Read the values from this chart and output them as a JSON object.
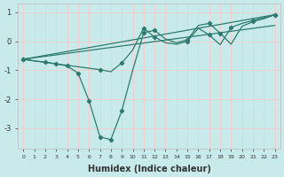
{
  "xlabel": "Humidex (Indice chaleur)",
  "background_color": "#c8eaea",
  "grid_color": "#f0d0d0",
  "line_color": "#2e7b6e",
  "xlim": [
    -0.5,
    23.5
  ],
  "ylim": [
    -3.7,
    1.3
  ],
  "yticks": [
    1,
    0,
    -1,
    -2,
    -3
  ],
  "line1": {
    "x": [
      0,
      23
    ],
    "y": [
      -0.62,
      0.92
    ]
  },
  "line2": {
    "x": [
      0,
      23
    ],
    "y": [
      -0.62,
      0.55
    ]
  },
  "line3": {
    "x": [
      0,
      3,
      4,
      5,
      6,
      7,
      8,
      9,
      10,
      11,
      12,
      13,
      14,
      15,
      16,
      17,
      18,
      19,
      20,
      21,
      22,
      23
    ],
    "y": [
      -0.62,
      -0.78,
      -0.85,
      -1.1,
      -2.05,
      -3.3,
      -3.4,
      -2.4,
      -1.0,
      0.3,
      0.38,
      0.08,
      -0.05,
      0.05,
      0.55,
      0.62,
      0.28,
      -0.1,
      0.52,
      0.68,
      0.78,
      0.92
    ],
    "marker_x": [
      0,
      3,
      5,
      6,
      7,
      8,
      9,
      11,
      12,
      15,
      17,
      18,
      21,
      23
    ],
    "marker_y": [
      -0.62,
      -0.78,
      -1.1,
      -2.05,
      -3.3,
      -3.4,
      -2.4,
      0.3,
      0.38,
      0.05,
      0.62,
      0.28,
      0.68,
      0.92
    ]
  },
  "line4": {
    "x": [
      0,
      1,
      2,
      3,
      4,
      5,
      6,
      7,
      8,
      9,
      10,
      11,
      12,
      13,
      14,
      15,
      16,
      17,
      18,
      19,
      20,
      21,
      22,
      23
    ],
    "y": [
      -0.62,
      -0.68,
      -0.72,
      -0.78,
      -0.83,
      -0.88,
      -0.93,
      -0.98,
      -1.05,
      -0.75,
      -0.3,
      0.45,
      0.15,
      -0.05,
      -0.1,
      0.0,
      0.45,
      0.22,
      -0.12,
      0.48,
      0.62,
      0.72,
      0.82,
      0.92
    ],
    "marker_x": [
      0,
      2,
      4,
      7,
      9,
      11,
      12,
      15,
      17,
      19,
      21,
      23
    ],
    "marker_y": [
      -0.62,
      -0.72,
      -0.83,
      -0.98,
      -0.75,
      0.45,
      0.15,
      0.0,
      0.22,
      0.48,
      0.72,
      0.92
    ]
  }
}
